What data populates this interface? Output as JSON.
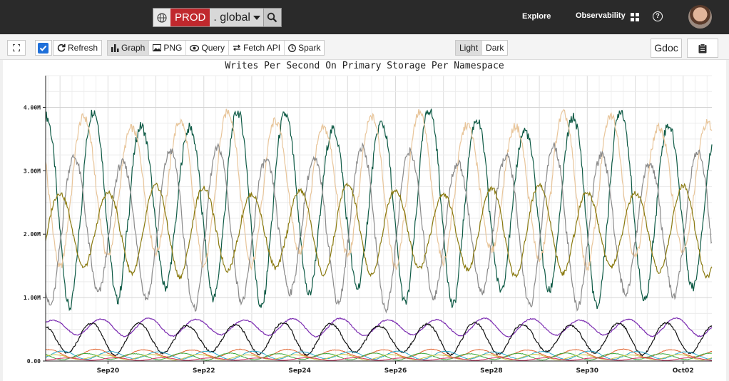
{
  "topbar": {
    "env_label": "PROD",
    "region_label": ". global",
    "nav_explore": "Explore",
    "nav_observability": "Observability",
    "help_glyph": "?"
  },
  "toolbar": {
    "refresh_label": "Refresh",
    "graph_label": "Graph",
    "png_label": "PNG",
    "query_label": "Query",
    "fetch_api_label": "Fetch API",
    "spark_label": "Spark",
    "light_label": "Light",
    "dark_label": "Dark",
    "gdoc_label": "Gdoc",
    "refresh_checked": true
  },
  "icons": {
    "fullscreen": "fullscreen-icon",
    "refresh": "refresh-icon",
    "graph": "bar-chart-icon",
    "png": "image-icon",
    "query": "eye-icon",
    "fetch_api": "exchange-icon",
    "spark": "clock-icon",
    "clipboard": "clipboard-icon",
    "globe": "globe-icon",
    "search": "search-icon",
    "grid": "grid-icon",
    "help": "help-icon"
  },
  "colors": {
    "prod_badge": "#c0282d",
    "topbar_bg": "#2a2a2a",
    "checkbox": "#1e6fd9"
  },
  "chart_data": {
    "type": "line",
    "title": "Writes Per Second On Primary Storage Per Namespace",
    "yticks": [
      "0.00",
      "1.00M",
      "2.00M",
      "3.00M",
      "4.00M"
    ],
    "xticks": [
      "Sep20",
      "Sep22",
      "Sep24",
      "Sep26",
      "Sep28",
      "Sep30",
      "Oct02"
    ],
    "ylim": [
      0,
      4500000
    ],
    "grid": true,
    "x_range_days": [
      18.7,
      32.6
    ],
    "series": [
      {
        "color": "#0e5a45",
        "base": 2400000,
        "amp": 1400000,
        "phase": 0.55
      },
      {
        "color": "#e8c59a",
        "base": 2700000,
        "amp": 1100000,
        "phase": 0.75
      },
      {
        "color": "#8a8a8a",
        "base": 2100000,
        "amp": 1150000,
        "phase": 0.95
      },
      {
        "color": "#8a7a10",
        "base": 2050000,
        "amp": 650000,
        "phase": 0.25
      },
      {
        "color": "#7a2ab0",
        "base": 530000,
        "amp": 130000,
        "phase": 0.4
      },
      {
        "color": "#111111",
        "base": 350000,
        "amp": 230000,
        "phase": 0.6
      },
      {
        "color": "#e0602a",
        "base": 120000,
        "amp": 60000,
        "phase": 0.5
      },
      {
        "color": "#2aa6c9",
        "base": 90000,
        "amp": 60000,
        "phase": 0.2
      },
      {
        "color": "#3aa83a",
        "base": 70000,
        "amp": 50000,
        "phase": 0.7
      },
      {
        "color": "#c8c840",
        "base": 60000,
        "amp": 40000,
        "phase": 0.35
      },
      {
        "color": "#d03060",
        "base": 30000,
        "amp": 20000,
        "phase": 0.1
      }
    ]
  }
}
